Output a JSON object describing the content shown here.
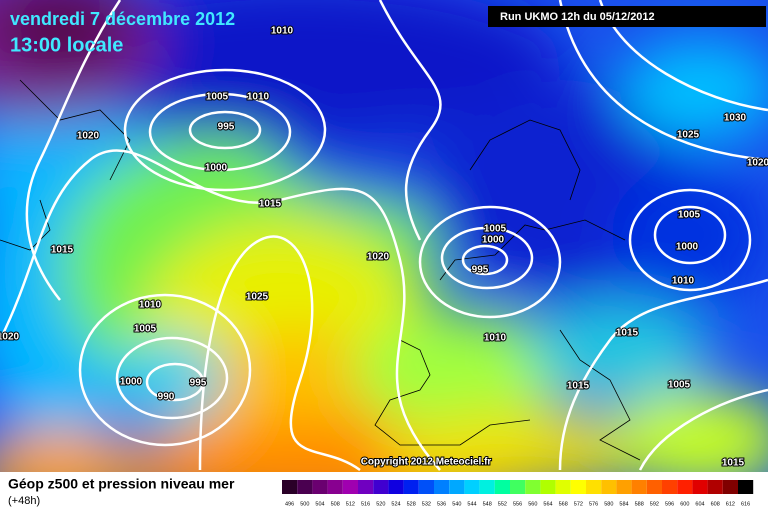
{
  "header": {
    "date": "vendredi 7 décembre 2012",
    "time": "13:00 locale",
    "run": "Run UKMO 12h du 05/12/2012"
  },
  "map": {
    "isobar_labels": [
      "1010",
      "1005",
      "1010",
      "995",
      "1000",
      "1020",
      "1015",
      "1015",
      "1025",
      "1020",
      "1010",
      "1005",
      "1000",
      "995",
      "990",
      "1020",
      "1005",
      "1000",
      "995",
      "1010",
      "1025",
      "1030",
      "1020",
      "1005",
      "1000",
      "1010",
      "1015",
      "1015",
      "1005",
      "1015"
    ],
    "copyright": "Copyright 2012 Meteociel.fr"
  },
  "footer": {
    "title": "Géop z500 et pression niveau mer",
    "lead": "(+48h)"
  },
  "scale": {
    "values": [
      496,
      500,
      504,
      508,
      512,
      516,
      520,
      524,
      528,
      532,
      536,
      540,
      544,
      548,
      552,
      556,
      560,
      564,
      568,
      572,
      576,
      580,
      584,
      588,
      592,
      596,
      600,
      604,
      608,
      612,
      616
    ],
    "colors": [
      "#2a0028",
      "#4a0050",
      "#6a0070",
      "#880090",
      "#a000b0",
      "#7000c0",
      "#4000d0",
      "#1000e0",
      "#0020f0",
      "#0050f8",
      "#0080ff",
      "#00a8ff",
      "#00d0ff",
      "#00f0e0",
      "#00ffa0",
      "#40ff60",
      "#80ff30",
      "#b0ff00",
      "#e0ff00",
      "#ffff00",
      "#ffe000",
      "#ffc000",
      "#ffa000",
      "#ff8000",
      "#ff6000",
      "#ff4000",
      "#ff2000",
      "#e00000",
      "#b00000",
      "#800000",
      "#000000"
    ]
  }
}
